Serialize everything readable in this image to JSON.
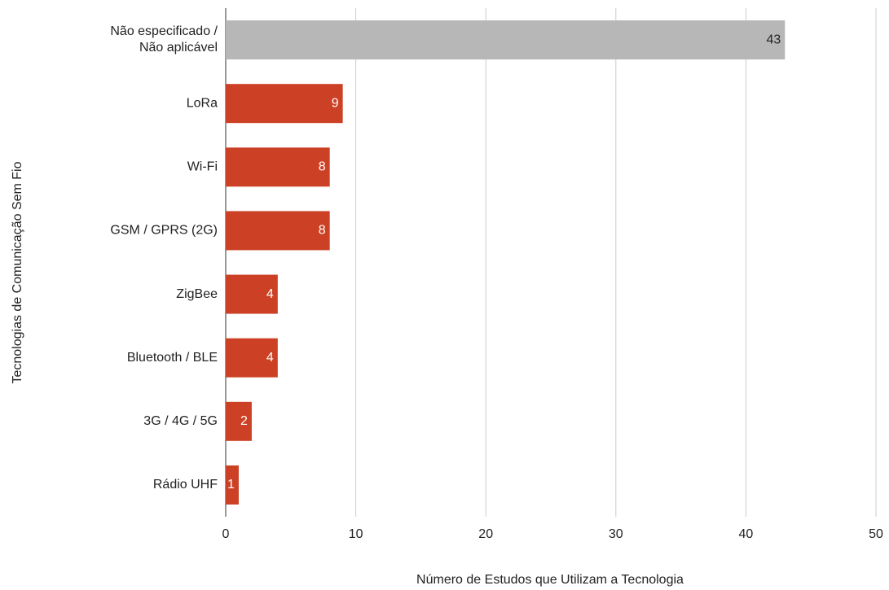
{
  "chart_data": {
    "type": "barh",
    "xlabel": "Número de Estudos que Utilizam a Tecnologia",
    "ylabel": "Tecnologias de Comunicação Sem Fio",
    "categories": [
      "Não especificado /\nNão aplicável",
      "LoRa",
      "Wi-Fi",
      "GSM / GPRS (2G)",
      "ZigBee",
      "Bluetooth / BLE",
      "3G / 4G / 5G",
      "Rádio UHF"
    ],
    "values": [
      43,
      9,
      8,
      8,
      4,
      4,
      2,
      1
    ],
    "colors": [
      "#b7b7b7",
      "#cc4125",
      "#cc4125",
      "#cc4125",
      "#cc4125",
      "#cc4125",
      "#cc4125",
      "#cc4125"
    ],
    "xlim": [
      0,
      50
    ],
    "xticks": [
      0,
      10,
      20,
      30,
      40,
      50
    ],
    "grid": true
  }
}
